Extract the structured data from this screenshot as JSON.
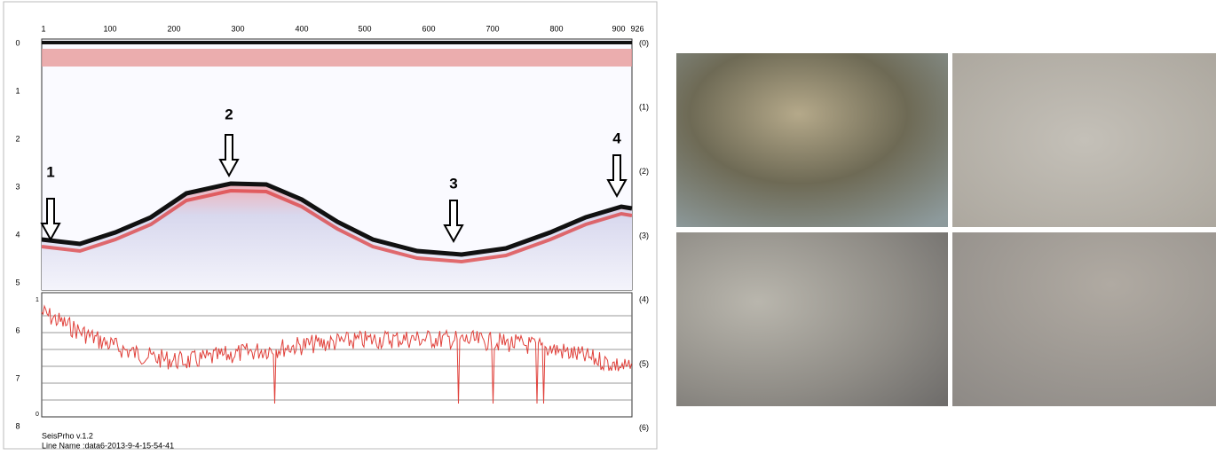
{
  "profile": {
    "top_axis": [
      "1",
      "100",
      "200",
      "300",
      "400",
      "500",
      "600",
      "700",
      "800",
      "900",
      "926"
    ],
    "left_axis": [
      "0",
      "1",
      "2",
      "3",
      "4",
      "5",
      "6",
      "7",
      "8"
    ],
    "right_axis": [
      "(0)",
      "(1)",
      "(2)",
      "(3)",
      "(4)",
      "(5)",
      "(6)"
    ],
    "markers": [
      "1",
      "2",
      "3",
      "4"
    ],
    "trace_axis": [
      "1",
      "0"
    ]
  },
  "footer": {
    "software": "SeisPrho v.1.2",
    "line_name": "Line Name :data6-2013-9-4-15-54-41"
  }
}
